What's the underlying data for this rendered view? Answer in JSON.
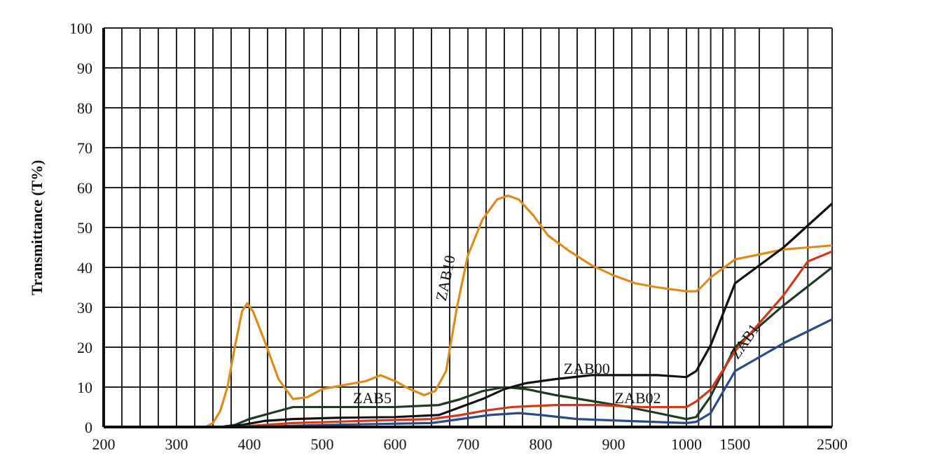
{
  "chart_data": [
    {
      "type": "line",
      "ylabel": "Transmittance (T%)",
      "xlim": [
        200,
        1000
      ],
      "ylim": [
        0,
        100
      ],
      "yticks": [
        0,
        10,
        20,
        30,
        40,
        50,
        60,
        70,
        80,
        90,
        100
      ],
      "xticks": [
        200,
        {
          "value": 225,
          "label": null
        },
        {
          "value": 250,
          "label": null
        },
        {
          "value": 275,
          "label": null
        },
        300,
        {
          "value": 325,
          "label": null
        },
        {
          "value": 350,
          "label": null
        },
        {
          "value": 375,
          "label": null
        },
        400,
        {
          "value": 425,
          "label": null
        },
        {
          "value": 450,
          "label": null
        },
        {
          "value": 475,
          "label": null
        },
        500,
        {
          "value": 525,
          "label": null
        },
        {
          "value": 550,
          "label": null
        },
        {
          "value": 575,
          "label": null
        },
        600,
        {
          "value": 625,
          "label": null
        },
        {
          "value": 650,
          "label": null
        },
        {
          "value": 675,
          "label": null
        },
        700,
        {
          "value": 725,
          "label": null
        },
        {
          "value": 750,
          "label": null
        },
        {
          "value": 775,
          "label": null
        },
        800,
        {
          "value": 825,
          "label": null
        },
        {
          "value": 850,
          "label": null
        },
        {
          "value": 875,
          "label": null
        },
        900,
        {
          "value": 925,
          "label": null
        },
        {
          "value": 950,
          "label": null
        },
        {
          "value": 975,
          "label": null
        },
        1000
      ],
      "grid": true,
      "line_style": "solid",
      "series": [
        {
          "name": "ZAB10",
          "color": "#dc8c1c",
          "x": [
            340,
            350,
            360,
            370,
            380,
            390,
            397,
            405,
            420,
            440,
            460,
            480,
            500,
            530,
            560,
            580,
            600,
            620,
            640,
            655,
            670,
            685,
            700,
            720,
            740,
            755,
            770,
            790,
            810,
            840,
            870,
            900,
            930,
            960,
            1000
          ],
          "values": [
            0,
            1,
            4,
            10,
            20,
            29,
            31,
            29,
            22,
            12,
            7,
            7.5,
            9.5,
            10.5,
            11.5,
            13,
            11.5,
            9.5,
            8,
            9,
            14,
            30,
            43,
            52,
            57,
            58,
            57,
            53,
            48,
            44,
            40.5,
            38,
            36,
            35,
            34
          ]
        },
        {
          "name": "ZAB5",
          "color": "#1f3a22",
          "x": [
            360,
            380,
            400,
            430,
            460,
            500,
            600,
            660,
            690,
            720,
            750,
            780,
            820,
            870,
            920,
            960,
            1000
          ],
          "values": [
            0,
            0.5,
            2,
            3.5,
            5,
            5,
            5,
            5.5,
            7,
            9,
            10,
            9.5,
            8,
            6.5,
            5,
            3.5,
            2
          ]
        },
        {
          "name": "ZAB00",
          "color": "#111111",
          "x": [
            360,
            390,
            420,
            460,
            520,
            600,
            660,
            690,
            720,
            750,
            780,
            820,
            870,
            920,
            960,
            1000
          ],
          "values": [
            0,
            0.5,
            1.5,
            2,
            2.3,
            2.5,
            3,
            5,
            7,
            9.5,
            11,
            12,
            13,
            13,
            13,
            12.5
          ]
        },
        {
          "name": "ZAB02",
          "color": "#d03a1a",
          "x": [
            380,
            420,
            460,
            550,
            650,
            690,
            720,
            760,
            820,
            880,
            940,
            1000
          ],
          "values": [
            0,
            0.5,
            1,
            1.5,
            2,
            3,
            4,
            5,
            5.5,
            5.5,
            5,
            5
          ]
        },
        {
          "color": "#2a4a8a",
          "x": [
            400,
            500,
            650,
            690,
            730,
            770,
            800,
            850,
            920,
            1000
          ],
          "values": [
            0,
            0.5,
            1,
            2,
            3,
            3.5,
            3,
            2,
            1.5,
            1
          ]
        }
      ]
    },
    {
      "type": "line",
      "xlim": [
        1000,
        2500
      ],
      "ylim": [
        0,
        100
      ],
      "yticks": [
        0,
        10,
        20,
        30,
        40,
        50,
        60,
        70,
        80,
        90,
        100
      ],
      "tick_labels": "x",
      "xticks": [
        {
          "value": 1125,
          "label": null
        },
        {
          "value": 1250,
          "label": null
        },
        {
          "value": 1375,
          "label": null
        },
        1500,
        {
          "value": 1750,
          "label": null
        },
        {
          "value": 2000,
          "label": null
        },
        {
          "value": 2250,
          "label": null
        },
        2500
      ],
      "grid": true,
      "line_style": "solid",
      "series": [
        {
          "color": "#dc8c1c",
          "x": [
            1000,
            1100,
            1150,
            1250,
            1500,
            2000,
            2250,
            2500
          ],
          "values": [
            34,
            34,
            35,
            37.5,
            42,
            44.5,
            45,
            45.5
          ]
        },
        {
          "color": "#1f3a22",
          "x": [
            1000,
            1100,
            1250,
            1500,
            2000,
            2500
          ],
          "values": [
            2,
            2.5,
            7.7,
            20,
            30.5,
            40
          ]
        },
        {
          "color": "#111111",
          "x": [
            1000,
            1100,
            1250,
            1500,
            2000,
            2500
          ],
          "values": [
            12.5,
            14,
            20.5,
            36,
            45,
            56
          ]
        },
        {
          "color": "#d03a1a",
          "x": [
            1000,
            1100,
            1250,
            1500,
            2000,
            2250,
            2500
          ],
          "values": [
            5,
            6.4,
            9.4,
            19,
            33,
            41.5,
            44
          ]
        },
        {
          "name": "ZAB1",
          "color": "#2a4a8a",
          "x": [
            1000,
            1100,
            1250,
            1500,
            2000,
            2500
          ],
          "values": [
            1,
            1.3,
            3.5,
            14,
            21,
            27
          ]
        }
      ]
    }
  ]
}
